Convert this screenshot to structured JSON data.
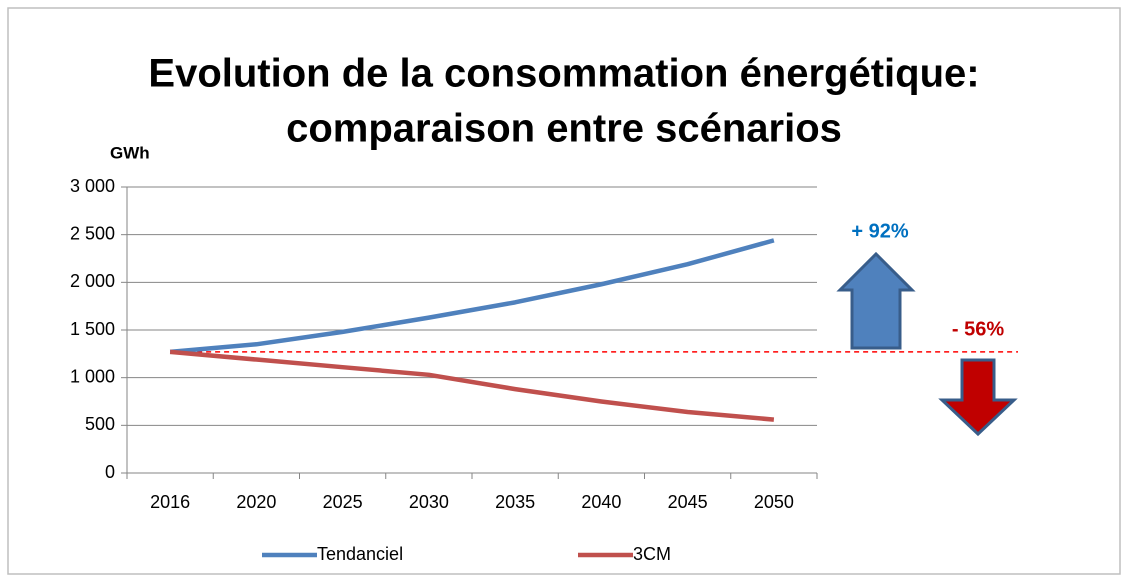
{
  "chart_data": {
    "type": "line",
    "title": [
      "Evolution de la consommation énergétique:",
      "comparaison entre scénarios"
    ],
    "y_label": "GWh",
    "categories": [
      "2016",
      "2020",
      "2025",
      "2030",
      "2035",
      "2040",
      "2045",
      "2050"
    ],
    "series": [
      {
        "name": "Tendanciel",
        "color": "#4f81bd",
        "values": [
          1270,
          1350,
          1480,
          1630,
          1790,
          1980,
          2190,
          2440
        ]
      },
      {
        "name": "3CM",
        "color": "#c0504d",
        "values": [
          1270,
          1190,
          1110,
          1030,
          880,
          750,
          640,
          560
        ]
      }
    ],
    "ylim": [
      0,
      3000
    ],
    "yticks": [
      0,
      500,
      {
        "value": 1000,
        "label": "1 000"
      },
      {
        "value": 1500,
        "label": "1 500"
      },
      {
        "value": 2000,
        "label": "2 000"
      },
      {
        "value": 2500,
        "label": "2 500"
      },
      {
        "value": 3000,
        "label": "3 000"
      }
    ],
    "grid": true,
    "legend": "bottom",
    "reference_line": {
      "value": 1270,
      "color": "#ff0000"
    },
    "annotations": [
      {
        "text": "+ 92%",
        "color": "#0070c0"
      },
      {
        "text": "- 56%",
        "color": "#c00000"
      }
    ]
  }
}
